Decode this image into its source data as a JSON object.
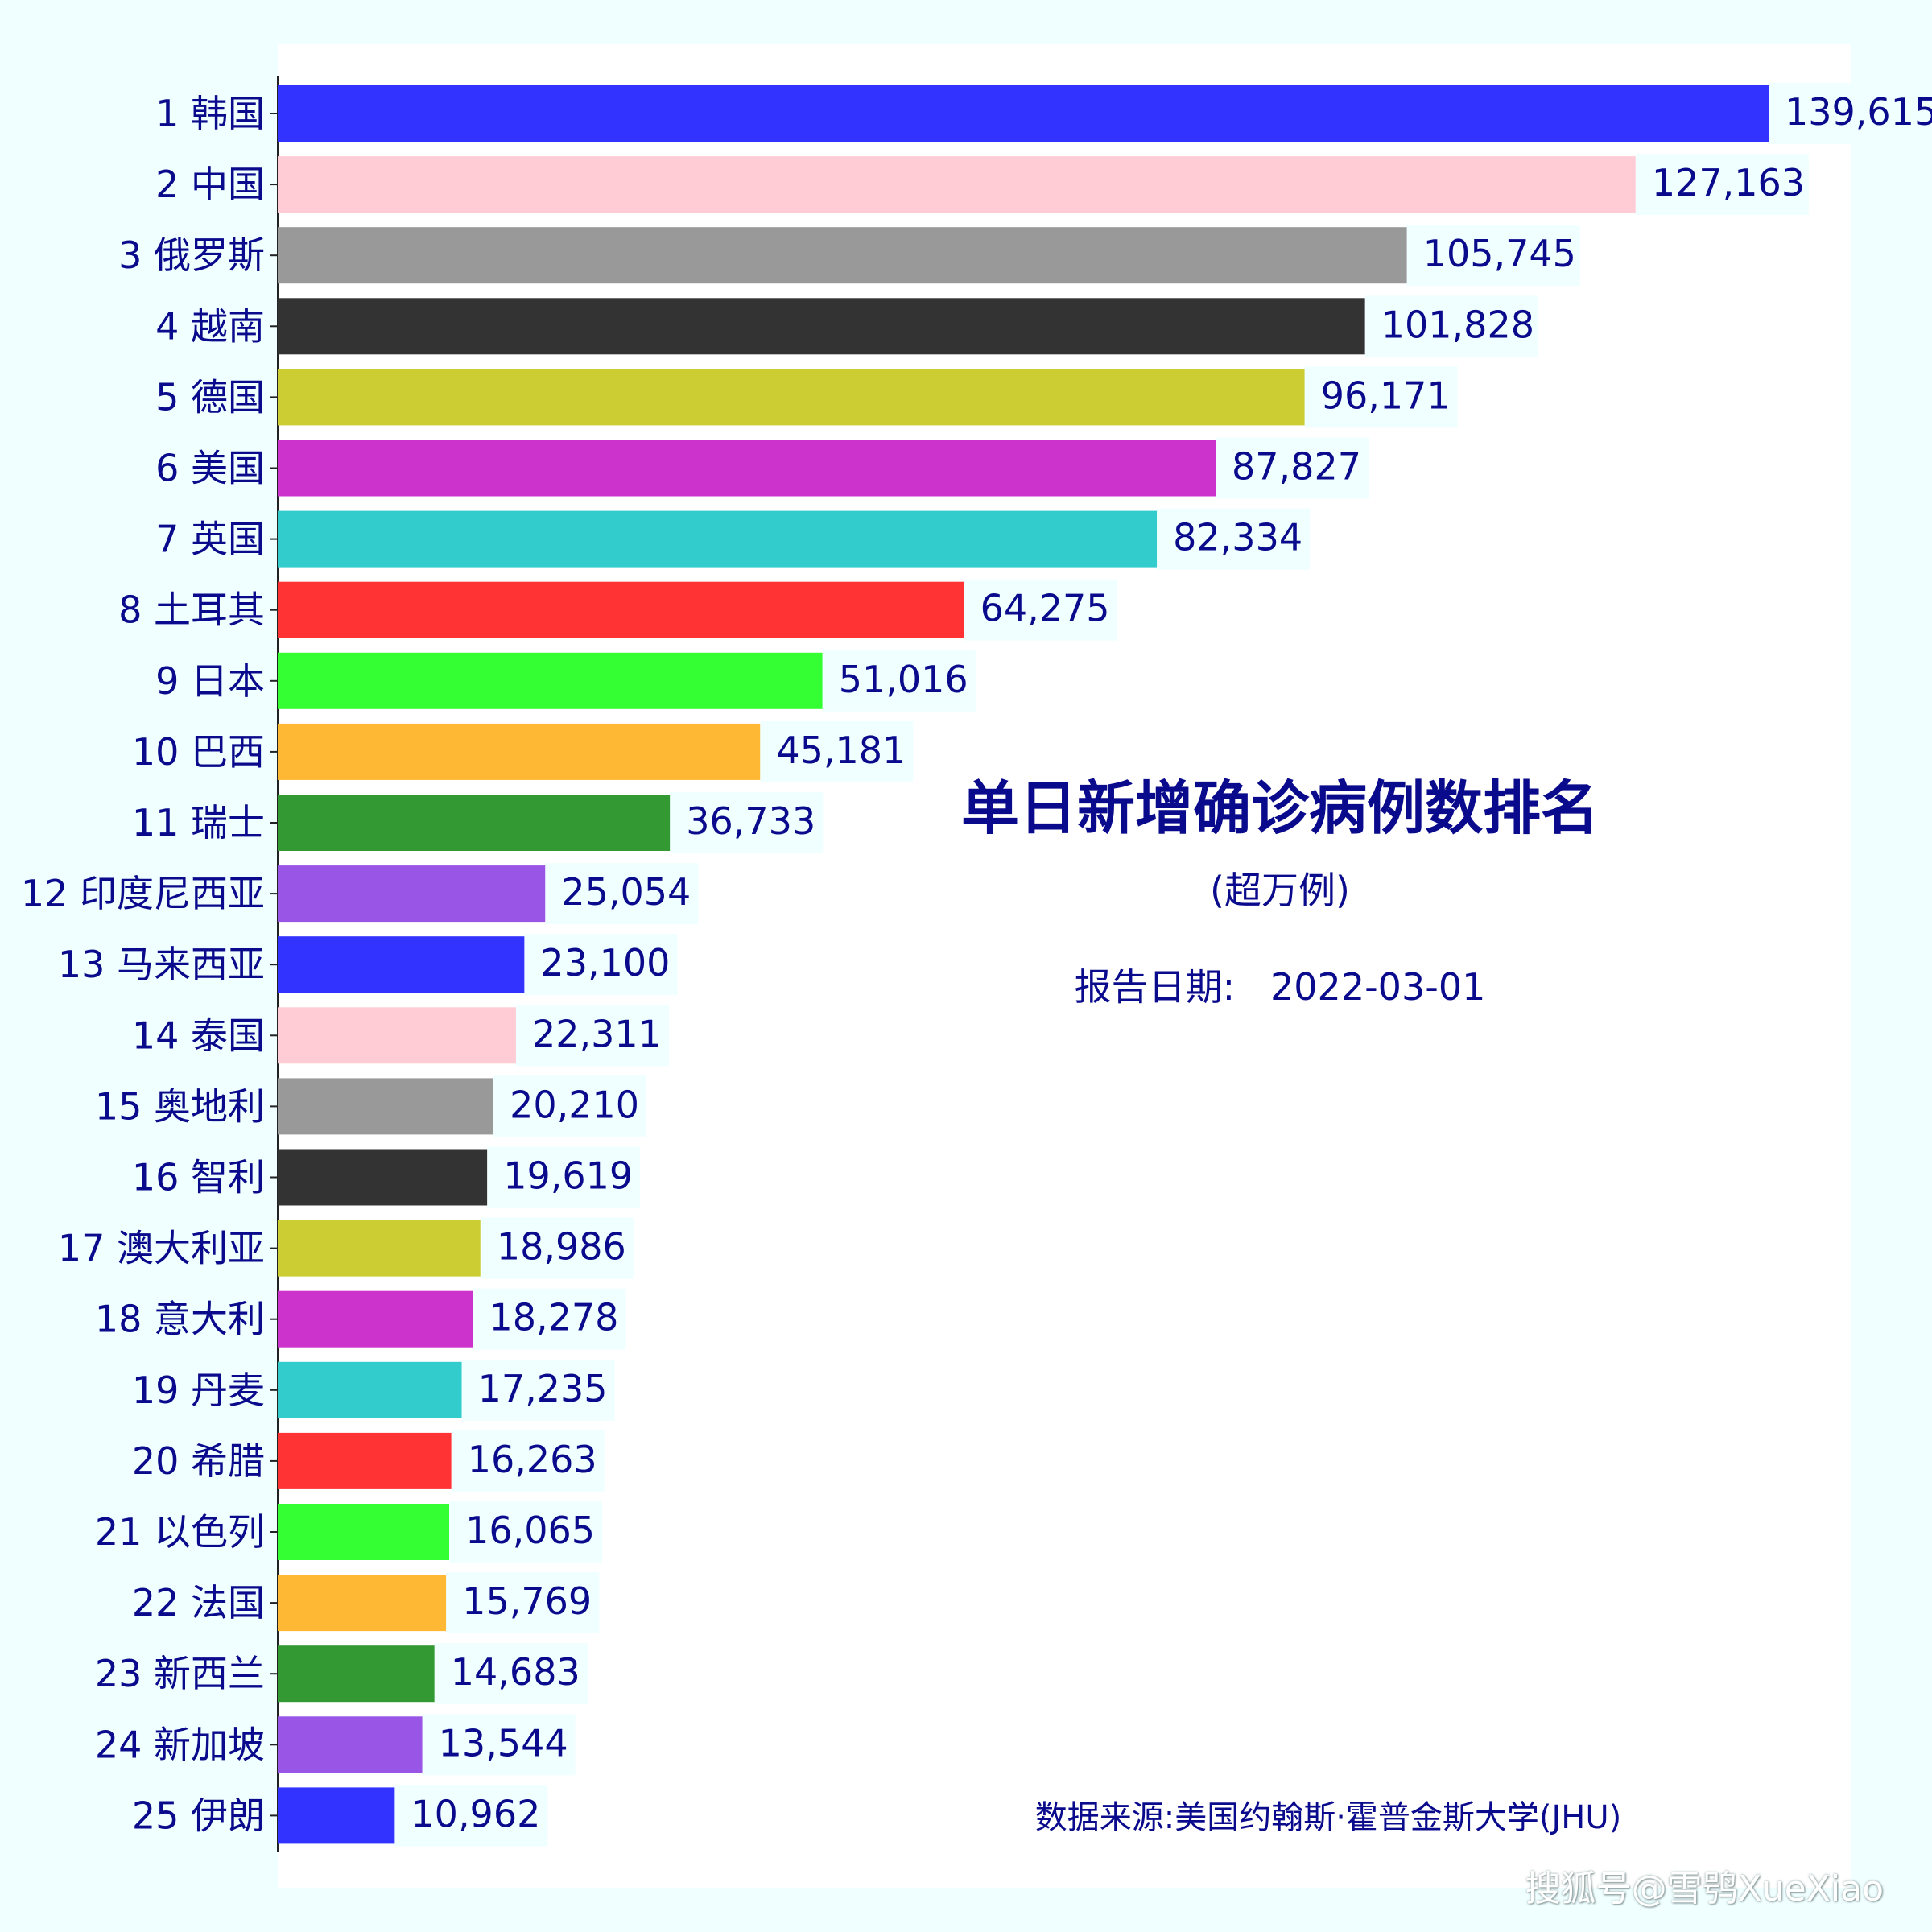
{
  "chart_data": {
    "type": "bar",
    "orientation": "horizontal",
    "title": "单日新增确诊病例数排名",
    "subtitle": "(超万例)",
    "report_date_label": "报告日期:",
    "report_date": "2022-03-01",
    "source": "数据来源:美国约翰斯·霍普金斯大学(JHU)",
    "categories": [
      "1 韩国",
      "2 中国",
      "3 俄罗斯",
      "4 越南",
      "5 德国",
      "6 美国",
      "7 英国",
      "8 土耳其",
      "9 日本",
      "10 巴西",
      "11 瑞士",
      "12 印度尼西亚",
      "13 马来西亚",
      "14 泰国",
      "15 奥地利",
      "16 智利",
      "17 澳大利亚",
      "18 意大利",
      "19 丹麦",
      "20 希腊",
      "21 以色列",
      "22 法国",
      "23 新西兰",
      "24 新加坡",
      "25 伊朗"
    ],
    "values": [
      139615,
      127163,
      105745,
      101828,
      96171,
      87827,
      82334,
      64275,
      51016,
      45181,
      36733,
      25054,
      23100,
      22311,
      20210,
      19619,
      18986,
      18278,
      17235,
      16263,
      16065,
      15769,
      14683,
      13544,
      10962
    ],
    "value_labels": [
      "139,615",
      "127,163",
      "105,745",
      "101,828",
      "96,171",
      "87,827",
      "82,334",
      "64,275",
      "51,016",
      "45,181",
      "36,733",
      "25,054",
      "23,100",
      "22,311",
      "20,210",
      "19,619",
      "18,986",
      "18,278",
      "17,235",
      "16,263",
      "16,065",
      "15,769",
      "14,683",
      "13,544",
      "10,962"
    ],
    "colors": [
      "#3333ff",
      "#ffccd5",
      "#999999",
      "#333333",
      "#cccc33",
      "#cc33cc",
      "#33cccc",
      "#ff3333",
      "#33ff33",
      "#ffb833",
      "#339933",
      "#9955e6",
      "#3333ff",
      "#ffccd5",
      "#999999",
      "#333333",
      "#cccc33",
      "#cc33cc",
      "#33cccc",
      "#ff3333",
      "#33ff33",
      "#ffb833",
      "#339933",
      "#9955e6",
      "#3333ff"
    ],
    "grid": false
  },
  "watermark": "搜狐号@雪鸮XueXiao"
}
